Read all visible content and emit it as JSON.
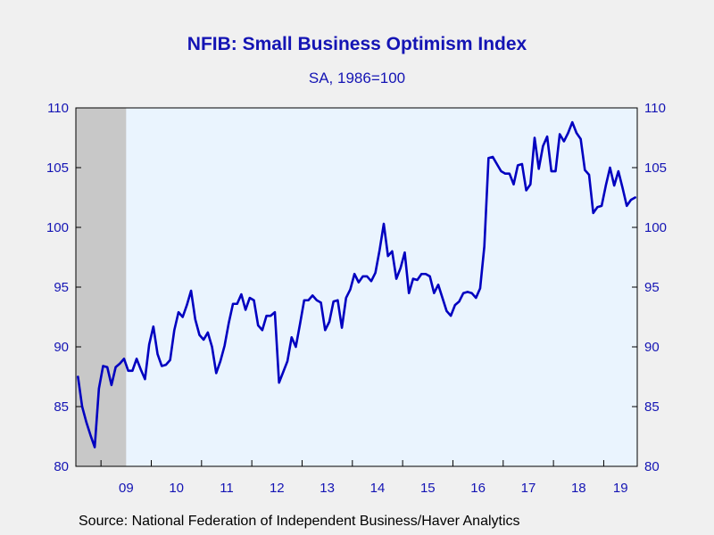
{
  "title": "NFIB: Small Business Optimism Index",
  "subtitle": "SA, 1986=100",
  "source": "Source:  National Federation of Independent Business/Haver Analytics",
  "colors": {
    "line": "#0000c0",
    "plot_background": "#eaf4fe",
    "recession_shade": "#c8c8c8",
    "text": "#1414b4"
  },
  "chart_data": {
    "type": "line",
    "title": "NFIB: Small Business Optimism Index",
    "subtitle": "SA, 1986=100",
    "xlabel": "",
    "ylabel": "",
    "ylim": [
      80,
      110
    ],
    "yticks": [
      80,
      85,
      90,
      95,
      100,
      105,
      110
    ],
    "y_axis_both_sides": true,
    "xticks": [
      "09",
      "10",
      "11",
      "12",
      "13",
      "14",
      "15",
      "16",
      "17",
      "18",
      "19"
    ],
    "x_start": "2008-07",
    "x_end": "2019-08",
    "grid": false,
    "recession_shading": {
      "start": "2008-07",
      "end": "2009-06"
    },
    "series": [
      {
        "x": [
          "2008-07",
          "2008-08",
          "2008-09",
          "2008-10",
          "2008-11",
          "2008-12",
          "2009-01",
          "2009-02",
          "2009-03",
          "2009-04",
          "2009-05",
          "2009-06",
          "2009-07",
          "2009-08",
          "2009-09",
          "2009-10",
          "2009-11",
          "2009-12",
          "2010-01",
          "2010-02",
          "2010-03",
          "2010-04",
          "2010-05",
          "2010-06",
          "2010-07",
          "2010-08",
          "2010-09",
          "2010-10",
          "2010-11",
          "2010-12",
          "2011-01",
          "2011-02",
          "2011-03",
          "2011-04",
          "2011-05",
          "2011-06",
          "2011-07",
          "2011-08",
          "2011-09",
          "2011-10",
          "2011-11",
          "2011-12",
          "2012-01",
          "2012-02",
          "2012-03",
          "2012-04",
          "2012-05",
          "2012-06",
          "2012-07",
          "2012-08",
          "2012-09",
          "2012-10",
          "2012-11",
          "2012-12",
          "2013-01",
          "2013-02",
          "2013-03",
          "2013-04",
          "2013-05",
          "2013-06",
          "2013-07",
          "2013-08",
          "2013-09",
          "2013-10",
          "2013-11",
          "2013-12",
          "2014-01",
          "2014-02",
          "2014-03",
          "2014-04",
          "2014-05",
          "2014-06",
          "2014-07",
          "2014-08",
          "2014-09",
          "2014-10",
          "2014-11",
          "2014-12",
          "2015-01",
          "2015-02",
          "2015-03",
          "2015-04",
          "2015-05",
          "2015-06",
          "2015-07",
          "2015-08",
          "2015-09",
          "2015-10",
          "2015-11",
          "2015-12",
          "2016-01",
          "2016-02",
          "2016-03",
          "2016-04",
          "2016-05",
          "2016-06",
          "2016-07",
          "2016-08",
          "2016-09",
          "2016-10",
          "2016-11",
          "2016-12",
          "2017-01",
          "2017-02",
          "2017-03",
          "2017-04",
          "2017-05",
          "2017-06",
          "2017-07",
          "2017-08",
          "2017-09",
          "2017-10",
          "2017-11",
          "2017-12",
          "2018-01",
          "2018-02",
          "2018-03",
          "2018-04",
          "2018-05",
          "2018-06",
          "2018-07",
          "2018-08",
          "2018-09",
          "2018-10",
          "2018-11",
          "2018-12",
          "2019-01",
          "2019-02",
          "2019-03",
          "2019-04",
          "2019-05",
          "2019-06",
          "2019-07",
          "2019-08"
        ],
        "values": [
          87.5,
          85.0,
          83.7,
          82.6,
          81.6,
          86.5,
          88.4,
          88.3,
          86.8,
          88.3,
          88.6,
          89.0,
          88.0,
          88.0,
          89.0,
          88.1,
          87.3,
          90.2,
          91.7,
          89.4,
          88.4,
          88.5,
          88.9,
          91.4,
          92.9,
          92.5,
          93.5,
          94.7,
          92.3,
          91.0,
          90.6,
          91.2,
          90.0,
          87.8,
          88.8,
          90.1,
          92.0,
          93.6,
          93.6,
          94.4,
          93.1,
          94.1,
          93.9,
          91.8,
          91.4,
          92.6,
          92.6,
          92.9,
          87.0,
          87.9,
          88.8,
          90.8,
          90.0,
          91.9,
          93.9,
          93.9,
          94.3,
          93.9,
          93.7,
          91.4,
          92.1,
          93.8,
          93.9,
          91.6,
          94.1,
          94.8,
          96.1,
          95.4,
          95.9,
          95.9,
          95.5,
          96.2,
          98.1,
          100.3,
          97.6,
          98.0,
          95.7,
          96.6,
          97.9,
          94.5,
          95.7,
          95.6,
          96.1,
          96.1,
          95.9,
          94.5,
          95.2,
          94.1,
          93.0,
          92.6,
          93.5,
          93.8,
          94.5,
          94.6,
          94.5,
          94.1,
          94.9,
          98.4,
          105.8,
          105.9,
          105.3,
          104.7,
          104.5,
          104.5,
          103.6,
          105.2,
          105.3,
          103.1,
          103.6,
          107.5,
          104.9,
          106.8,
          107.6,
          104.7,
          104.7,
          107.8,
          107.2,
          107.9,
          108.8,
          107.9,
          107.4,
          104.8,
          104.4,
          101.2,
          101.7,
          101.8,
          103.5,
          105.0,
          103.5,
          104.7,
          103.3,
          101.8,
          102.3,
          102.5
        ]
      }
    ]
  }
}
